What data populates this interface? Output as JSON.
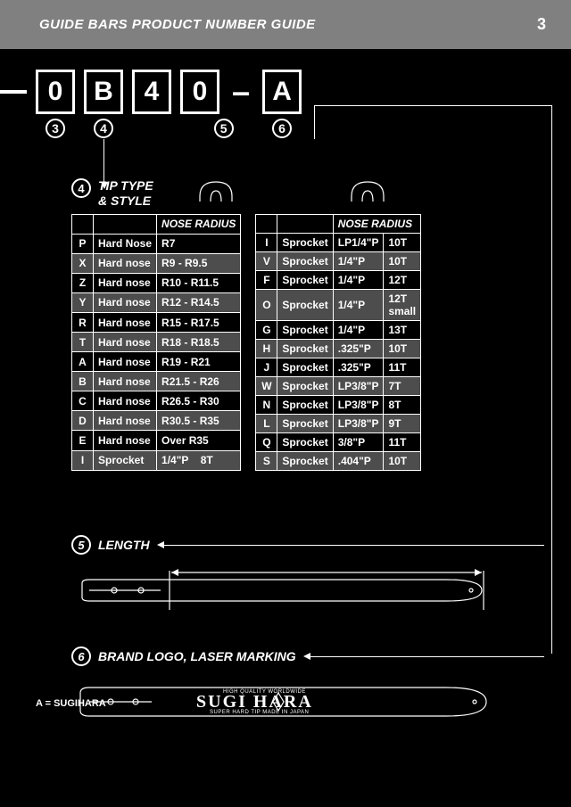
{
  "header": {
    "title": "GUIDE BARS PRODUCT NUMBER GUIDE",
    "page": "3"
  },
  "code": {
    "boxes": [
      "0",
      "B",
      "4",
      "0",
      "A"
    ],
    "subs": [
      "3",
      "4",
      "5",
      "6"
    ]
  },
  "tip": {
    "circle": "4",
    "title_line1": "TIP TYPE",
    "title_line2": "& STYLE",
    "col_nose": "NOSE RADIUS",
    "table1": [
      {
        "c": "P",
        "t": "Hard Nose",
        "n": "R7",
        "shade": false
      },
      {
        "c": "X",
        "t": "Hard nose",
        "n": "R9 - R9.5",
        "shade": true
      },
      {
        "c": "Z",
        "t": "Hard nose",
        "n": "R10 - R11.5",
        "shade": false
      },
      {
        "c": "Y",
        "t": "Hard nose",
        "n": "R12 - R14.5",
        "shade": true
      },
      {
        "c": "R",
        "t": "Hard nose",
        "n": "R15 - R17.5",
        "shade": false
      },
      {
        "c": "T",
        "t": "Hard nose",
        "n": "R18 - R18.5",
        "shade": true
      },
      {
        "c": "A",
        "t": "Hard nose",
        "n": "R19 - R21",
        "shade": false
      },
      {
        "c": "B",
        "t": "Hard nose",
        "n": "R21.5 - R26",
        "shade": true
      },
      {
        "c": "C",
        "t": "Hard nose",
        "n": "R26.5 - R30",
        "shade": false
      },
      {
        "c": "D",
        "t": "Hard nose",
        "n": "R30.5 - R35",
        "shade": true
      },
      {
        "c": "E",
        "t": "Hard nose",
        "n": "Over R35",
        "shade": false
      },
      {
        "c": "I",
        "t": "Sprocket",
        "n": "1/4\"P",
        "extra": "8T",
        "shade": true
      }
    ],
    "table2": [
      {
        "c": "I",
        "t": "Sprocket",
        "n": "LP1/4\"P",
        "extra": "10T",
        "shade": false
      },
      {
        "c": "V",
        "t": "Sprocket",
        "n": "1/4\"P",
        "extra": "10T",
        "shade": true
      },
      {
        "c": "F",
        "t": "Sprocket",
        "n": "1/4\"P",
        "extra": "12T",
        "shade": false
      },
      {
        "c": "O",
        "t": "Sprocket",
        "n": "1/4\"P",
        "extra": "12T small",
        "shade": true
      },
      {
        "c": "G",
        "t": "Sprocket",
        "n": "1/4\"P",
        "extra": "13T",
        "shade": false
      },
      {
        "c": "H",
        "t": "Sprocket",
        "n": ".325\"P",
        "extra": "10T",
        "shade": true
      },
      {
        "c": "J",
        "t": "Sprocket",
        "n": ".325\"P",
        "extra": "11T",
        "shade": false
      },
      {
        "c": "W",
        "t": "Sprocket",
        "n": "LP3/8\"P",
        "extra": "7T",
        "shade": true
      },
      {
        "c": "N",
        "t": "Sprocket",
        "n": "LP3/8\"P",
        "extra": "8T",
        "shade": false
      },
      {
        "c": "L",
        "t": "Sprocket",
        "n": "LP3/8\"P",
        "extra": "9T",
        "shade": true
      },
      {
        "c": "Q",
        "t": "Sprocket",
        "n": "3/8\"P",
        "extra": "11T",
        "shade": false
      },
      {
        "c": "S",
        "t": "Sprocket",
        "n": ".404\"P",
        "extra": "10T",
        "shade": true
      }
    ]
  },
  "length": {
    "circle": "5",
    "label": "LENGTH"
  },
  "brand": {
    "circle": "6",
    "label": "BRAND LOGO, LASER MARKING",
    "note": "A = SUGIHARA",
    "logo": "SUGI   HARA",
    "sub1": "HIGH QUALITY   WORLDWIDE",
    "sub2": "SUPER  HARD  TIP    MADE IN JAPAN"
  }
}
